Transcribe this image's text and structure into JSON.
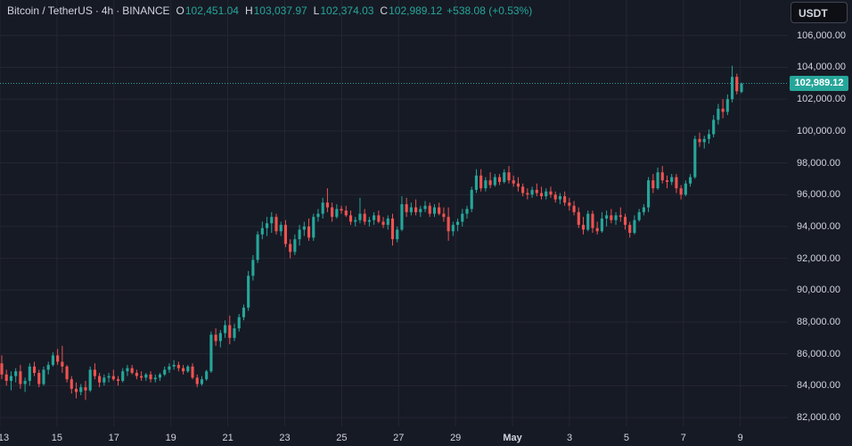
{
  "legend": {
    "symbol": "Bitcoin / TetherUS",
    "interval": "4h",
    "exchange": "BINANCE",
    "open_label": "O",
    "open": "102,451.04",
    "high_label": "H",
    "high": "103,037.97",
    "low_label": "L",
    "low": "102,374.03",
    "close_label": "C",
    "close": "102,989.12",
    "change": "+538.08 (+0.53%)"
  },
  "currency_button": "USDT",
  "last_price_label": "102,989.12",
  "colors": {
    "background": "#161a25",
    "up": "#26a69a",
    "down": "#ef5350",
    "grid": "#242733",
    "text": "#d1d4dc"
  },
  "chart_data": {
    "type": "candlestick",
    "title": "Bitcoin / TetherUS · 4h · BINANCE",
    "y_range": [
      81500,
      107500
    ],
    "y_ticks": [
      "82,000.00",
      "84,000.00",
      "86,000.00",
      "88,000.00",
      "90,000.00",
      "92,000.00",
      "94,000.00",
      "96,000.00",
      "98,000.00",
      "100,000.00",
      "102,000.00",
      "104,000.00",
      "106,000.00"
    ],
    "x_ticks": [
      "13",
      "15",
      "17",
      "19",
      "21",
      "23",
      "25",
      "27",
      "29",
      "May",
      "3",
      "5",
      "7",
      "9"
    ],
    "x_ticks_bold": [
      "May"
    ],
    "last_price": 102989.12,
    "candles": [
      [
        85400,
        85900,
        84400,
        84700
      ],
      [
        84700,
        85000,
        84000,
        84300
      ],
      [
        84300,
        84900,
        83700,
        84600
      ],
      [
        84600,
        85100,
        84200,
        84900
      ],
      [
        84900,
        85300,
        83800,
        84100
      ],
      [
        84100,
        84500,
        83600,
        84300
      ],
      [
        84300,
        85400,
        84000,
        85200
      ],
      [
        85200,
        85500,
        84600,
        84800
      ],
      [
        84800,
        85000,
        83900,
        84100
      ],
      [
        84100,
        85200,
        84000,
        85000
      ],
      [
        85000,
        85500,
        84700,
        85300
      ],
      [
        85300,
        86100,
        85200,
        85900
      ],
      [
        85900,
        86300,
        85300,
        85500
      ],
      [
        85500,
        86500,
        84800,
        85200
      ],
      [
        85200,
        85300,
        84200,
        84400
      ],
      [
        84400,
        84600,
        83500,
        83800
      ],
      [
        83800,
        84200,
        83200,
        83600
      ],
      [
        83600,
        84100,
        83400,
        83900
      ],
      [
        83900,
        84300,
        83100,
        83700
      ],
      [
        83700,
        85200,
        83600,
        85000
      ],
      [
        85000,
        85400,
        84400,
        84600
      ],
      [
        84600,
        84800,
        83900,
        84200
      ],
      [
        84200,
        84700,
        84000,
        84500
      ],
      [
        84500,
        84800,
        84200,
        84600
      ],
      [
        84600,
        85000,
        84300,
        84400
      ],
      [
        84400,
        84600,
        84000,
        84300
      ],
      [
        84300,
        85100,
        84200,
        84900
      ],
      [
        84900,
        85300,
        84600,
        85100
      ],
      [
        85100,
        85300,
        84700,
        84800
      ],
      [
        84800,
        85000,
        84400,
        84600
      ],
      [
        84600,
        84900,
        84300,
        84500
      ],
      [
        84500,
        84800,
        84300,
        84700
      ],
      [
        84700,
        84900,
        84200,
        84400
      ],
      [
        84400,
        84700,
        84200,
        84500
      ],
      [
        84500,
        84800,
        84300,
        84700
      ],
      [
        84700,
        85200,
        84600,
        85000
      ],
      [
        85000,
        85400,
        84800,
        85200
      ],
      [
        85200,
        85600,
        85000,
        85300
      ],
      [
        85300,
        85500,
        84900,
        85100
      ],
      [
        85100,
        85300,
        84700,
        84900
      ],
      [
        84900,
        85300,
        84800,
        85200
      ],
      [
        85200,
        85400,
        84400,
        84500
      ],
      [
        84500,
        84700,
        83900,
        84100
      ],
      [
        84100,
        84600,
        84000,
        84400
      ],
      [
        84400,
        85000,
        84300,
        84900
      ],
      [
        84900,
        87400,
        84800,
        87200
      ],
      [
        87200,
        87600,
        86500,
        86800
      ],
      [
        86800,
        87500,
        86400,
        87300
      ],
      [
        87300,
        88100,
        87000,
        87800
      ],
      [
        87800,
        88400,
        86600,
        87000
      ],
      [
        87000,
        87900,
        86800,
        87600
      ],
      [
        87600,
        88500,
        87400,
        88300
      ],
      [
        88300,
        89100,
        88100,
        88900
      ],
      [
        88900,
        91200,
        88700,
        90900
      ],
      [
        90900,
        92200,
        90600,
        91900
      ],
      [
        91900,
        93700,
        91700,
        93500
      ],
      [
        93500,
        94300,
        93200,
        93900
      ],
      [
        93900,
        94600,
        93400,
        94200
      ],
      [
        94200,
        94900,
        93600,
        94600
      ],
      [
        94600,
        94800,
        93500,
        93700
      ],
      [
        93700,
        94300,
        93400,
        94100
      ],
      [
        94100,
        94400,
        92700,
        92900
      ],
      [
        92900,
        93200,
        92000,
        92400
      ],
      [
        92400,
        93500,
        92200,
        93200
      ],
      [
        93200,
        94100,
        92800,
        93800
      ],
      [
        93800,
        94300,
        93400,
        94000
      ],
      [
        94000,
        94500,
        93100,
        93300
      ],
      [
        93300,
        94800,
        93100,
        94600
      ],
      [
        94600,
        95100,
        94300,
        94800
      ],
      [
        94800,
        95800,
        94500,
        95500
      ],
      [
        95500,
        96400,
        94900,
        95200
      ],
      [
        95200,
        95500,
        94300,
        94600
      ],
      [
        94600,
        95400,
        94500,
        95100
      ],
      [
        95100,
        95300,
        94800,
        95000
      ],
      [
        95000,
        95300,
        94600,
        94700
      ],
      [
        94700,
        95000,
        94100,
        94300
      ],
      [
        94300,
        94600,
        94000,
        94400
      ],
      [
        94400,
        95800,
        94200,
        94800
      ],
      [
        94800,
        95100,
        94100,
        94300
      ],
      [
        94300,
        94600,
        94000,
        94400
      ],
      [
        94400,
        94900,
        94100,
        94700
      ],
      [
        94700,
        95000,
        94200,
        94300
      ],
      [
        94300,
        94600,
        93900,
        94100
      ],
      [
        94100,
        94700,
        93800,
        94500
      ],
      [
        94500,
        94800,
        92800,
        93200
      ],
      [
        93200,
        94000,
        93000,
        93800
      ],
      [
        93800,
        95900,
        93700,
        95400
      ],
      [
        95400,
        95800,
        94600,
        94900
      ],
      [
        94900,
        95500,
        94700,
        95200
      ],
      [
        95200,
        95700,
        94700,
        94900
      ],
      [
        94900,
        95300,
        94600,
        95100
      ],
      [
        95100,
        95600,
        94900,
        95300
      ],
      [
        95300,
        95500,
        94600,
        94800
      ],
      [
        94800,
        95400,
        94600,
        95200
      ],
      [
        95200,
        95500,
        94700,
        94800
      ],
      [
        94800,
        95200,
        94300,
        94600
      ],
      [
        94600,
        95200,
        93100,
        93700
      ],
      [
        93700,
        94300,
        93400,
        94100
      ],
      [
        94100,
        94500,
        93700,
        94300
      ],
      [
        94300,
        95100,
        94000,
        94800
      ],
      [
        94800,
        95300,
        94500,
        95100
      ],
      [
        95100,
        96500,
        94900,
        96300
      ],
      [
        96300,
        97600,
        96100,
        97200
      ],
      [
        97200,
        97600,
        96200,
        96400
      ],
      [
        96400,
        97100,
        96200,
        96900
      ],
      [
        96900,
        97400,
        96400,
        96600
      ],
      [
        96600,
        97300,
        96500,
        97100
      ],
      [
        97100,
        97300,
        96600,
        96800
      ],
      [
        96800,
        97600,
        96700,
        97400
      ],
      [
        97400,
        97800,
        96700,
        96900
      ],
      [
        96900,
        97200,
        96500,
        96700
      ],
      [
        96700,
        97100,
        96200,
        96500
      ],
      [
        96500,
        96700,
        95900,
        96100
      ],
      [
        96100,
        96400,
        95700,
        96000
      ],
      [
        96000,
        96500,
        95800,
        96300
      ],
      [
        96300,
        96700,
        95900,
        96100
      ],
      [
        96100,
        96500,
        95700,
        95900
      ],
      [
        95900,
        96400,
        95700,
        96200
      ],
      [
        96200,
        96500,
        95800,
        96000
      ],
      [
        96000,
        96200,
        95500,
        95700
      ],
      [
        95700,
        96100,
        95400,
        95900
      ],
      [
        95900,
        96200,
        95300,
        95500
      ],
      [
        95500,
        95800,
        95000,
        95300
      ],
      [
        95300,
        95600,
        94700,
        94900
      ],
      [
        94900,
        95200,
        93900,
        94100
      ],
      [
        94100,
        94600,
        93500,
        93800
      ],
      [
        93800,
        95000,
        93700,
        94800
      ],
      [
        94800,
        95000,
        93600,
        93900
      ],
      [
        93900,
        94300,
        93500,
        93700
      ],
      [
        93700,
        94900,
        93600,
        94500
      ],
      [
        94500,
        95000,
        94000,
        94700
      ],
      [
        94700,
        95100,
        94200,
        94400
      ],
      [
        94400,
        94900,
        94100,
        94700
      ],
      [
        94700,
        95200,
        94300,
        94600
      ],
      [
        94600,
        94800,
        93800,
        94100
      ],
      [
        94100,
        94300,
        93300,
        93600
      ],
      [
        93600,
        94700,
        93500,
        94400
      ],
      [
        94400,
        95100,
        94300,
        94900
      ],
      [
        94900,
        95400,
        94700,
        95200
      ],
      [
        95200,
        97100,
        94900,
        96900
      ],
      [
        96900,
        97300,
        96100,
        96400
      ],
      [
        96400,
        97700,
        96300,
        97400
      ],
      [
        97400,
        97800,
        96700,
        96900
      ],
      [
        96900,
        97200,
        96400,
        96800
      ],
      [
        96800,
        97300,
        96600,
        97100
      ],
      [
        97100,
        97300,
        96100,
        96400
      ],
      [
        96400,
        96600,
        95700,
        96000
      ],
      [
        96000,
        96900,
        95900,
        96700
      ],
      [
        96700,
        97300,
        96500,
        97100
      ],
      [
        97100,
        99700,
        97000,
        99500
      ],
      [
        99500,
        99900,
        99000,
        99300
      ],
      [
        99300,
        99700,
        98900,
        99500
      ],
      [
        99500,
        100100,
        99200,
        99800
      ],
      [
        99800,
        101000,
        99600,
        100700
      ],
      [
        100700,
        101700,
        100400,
        101400
      ],
      [
        101400,
        102000,
        100800,
        101200
      ],
      [
        101200,
        102300,
        101000,
        102000
      ],
      [
        102000,
        104100,
        101800,
        103400
      ],
      [
        103400,
        103600,
        102300,
        102500
      ],
      [
        102451.04,
        103037.97,
        102374.03,
        102989.12
      ]
    ]
  }
}
